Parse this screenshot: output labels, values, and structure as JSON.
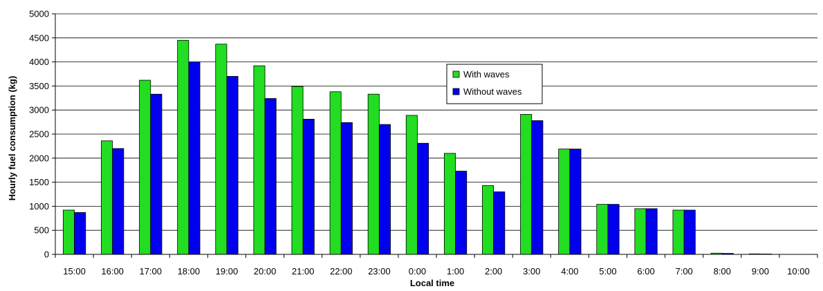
{
  "chart_data": {
    "type": "bar",
    "title": "",
    "xlabel": "Local time",
    "ylabel": "Hourly fuel consumption (kg)",
    "ylim": [
      0,
      5000
    ],
    "yticks": [
      "0",
      "500",
      "1000",
      "1500",
      "2000",
      "2500",
      "3000",
      "3500",
      "4000",
      "4500",
      "5000"
    ],
    "grid": true,
    "legend_position": "upper-center",
    "categories": [
      "15:00",
      "16:00",
      "17:00",
      "18:00",
      "19:00",
      "20:00",
      "21:00",
      "22:00",
      "23:00",
      "0:00",
      "1:00",
      "2:00",
      "3:00",
      "4:00",
      "5:00",
      "6:00",
      "7:00",
      "8:00",
      "9:00",
      "10:00"
    ],
    "series": [
      {
        "name": "With waves",
        "color": "#22dd22",
        "values": [
          920,
          2360,
          3620,
          4450,
          4370,
          3920,
          3490,
          3380,
          3330,
          2890,
          2100,
          1430,
          2910,
          2190,
          1040,
          950,
          920,
          25,
          10,
          0
        ]
      },
      {
        "name": "Without waves",
        "color": "#0000ee",
        "values": [
          870,
          2200,
          3330,
          4000,
          3700,
          3240,
          2810,
          2740,
          2700,
          2310,
          1730,
          1300,
          2780,
          2190,
          1040,
          950,
          920,
          20,
          8,
          0
        ]
      }
    ]
  }
}
